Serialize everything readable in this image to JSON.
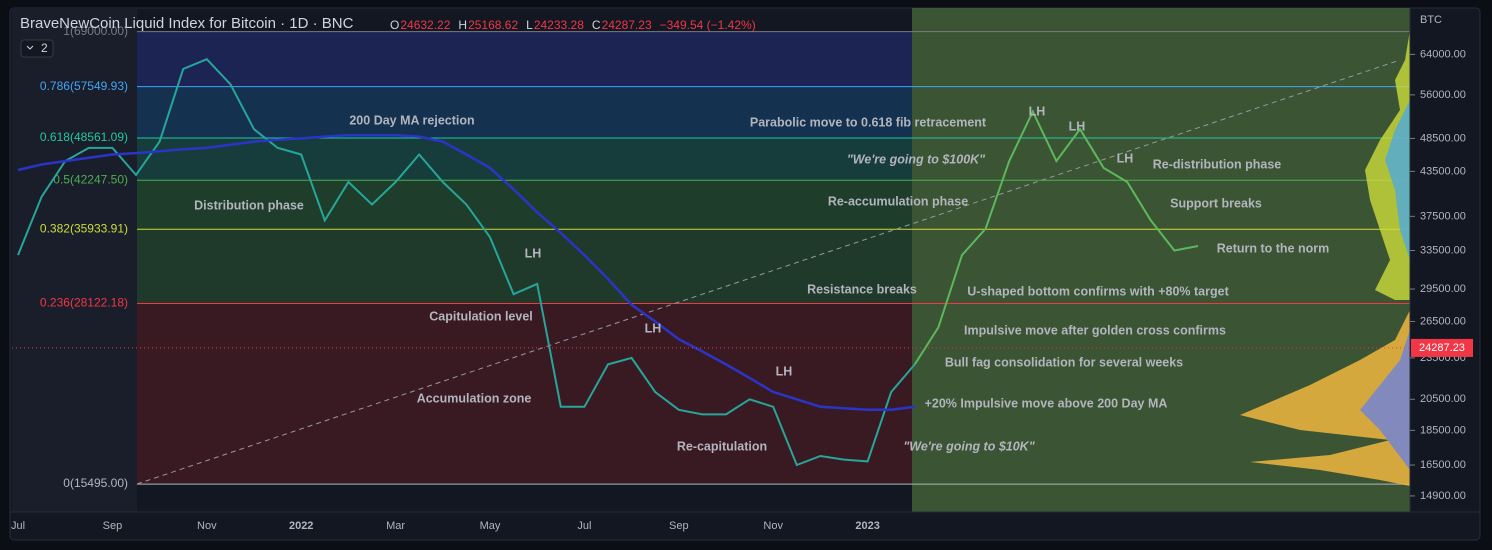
{
  "chart_data": {
    "type": "line",
    "title": "BraveNewCoin Liquid Index for Bitcoin · 1D · BNC",
    "ohlc": [
      {
        "key": "O",
        "value": 24632.22
      },
      {
        "key": "H",
        "value": 25168.62
      },
      {
        "key": "L",
        "value": 24233.28
      },
      {
        "key": "C",
        "value": 24287.23
      }
    ],
    "change": "−349.54 (−1.42%)",
    "indicator_count": "2",
    "currency": "BTC",
    "last_price": 24287.23,
    "log_scale": true,
    "ylim": [
      14130,
      74600
    ],
    "yticks": [
      {
        "value": 14900,
        "label": "14900.00"
      },
      {
        "value": 16500,
        "label": "16500.00"
      },
      {
        "value": 18500,
        "label": "18500.00"
      },
      {
        "value": 20500,
        "label": "20500.00"
      },
      {
        "value": 23500,
        "label": "23500.00"
      },
      {
        "value": 26500,
        "label": "26500.00"
      },
      {
        "value": 29500,
        "label": "29500.00"
      },
      {
        "value": 33500,
        "label": "33500.00"
      },
      {
        "value": 37500,
        "label": "37500.00"
      },
      {
        "value": 43500,
        "label": "43500.00"
      },
      {
        "value": 48500,
        "label": "48500.00"
      },
      {
        "value": 56000,
        "label": "56000.00"
      },
      {
        "value": 64000,
        "label": "64000.00"
      }
    ],
    "fib_levels": [
      {
        "value": 15495.0,
        "label": "0(15495.00)",
        "color": "#b2b5be"
      },
      {
        "value": 28122.18,
        "label": "0.236(28122.18)",
        "color": "#f23645"
      },
      {
        "value": 35933.91,
        "label": "0.382(35933.91)",
        "color": "#cddc39"
      },
      {
        "value": 42247.5,
        "label": "0.5(42247.50)",
        "color": "#4caf50"
      },
      {
        "value": 48561.09,
        "label": "0.618(48561.09)",
        "color": "#26c6a0"
      },
      {
        "value": 57549.93,
        "label": "0.786(57549.93)",
        "color": "#42a5f5"
      },
      {
        "value": 69000.0,
        "label": "1(69000.00)",
        "color": "#787b86"
      }
    ],
    "categories": [
      "Jul",
      null,
      null,
      null,
      "Sep",
      null,
      null,
      null,
      "Nov",
      null,
      null,
      null,
      "2022",
      null,
      null,
      null,
      "Mar",
      null,
      null,
      null,
      "May",
      null,
      null,
      null,
      "Jul",
      null,
      null,
      null,
      "Sep",
      null,
      null,
      null,
      "Nov",
      null,
      null,
      null,
      "2023",
      null,
      null,
      null,
      null,
      null,
      null,
      null,
      null,
      null,
      null,
      null,
      null,
      null,
      null
    ],
    "series": [
      {
        "color": "#26a69a",
        "values": [
          33000,
          40000,
          45000,
          47000,
          47000,
          43000,
          48000,
          61000,
          63000,
          58000,
          50000,
          47000,
          46000,
          37000,
          42000,
          39000,
          42000,
          46000,
          42000,
          39000,
          35000,
          29000,
          30000,
          20000,
          20000,
          23000,
          23500,
          21000,
          19800,
          19500,
          19500,
          20500,
          20000,
          16500,
          17000,
          16800,
          16700,
          21000,
          23000,
          null,
          null,
          null,
          null,
          null,
          null,
          null,
          null,
          null,
          null,
          null,
          null
        ]
      },
      {
        "color": "#2a35c8",
        "values": [
          43700,
          44500,
          45000,
          45500,
          46000,
          46200,
          46500,
          46800,
          47000,
          47500,
          48000,
          48300,
          48500,
          48800,
          49000,
          49000,
          49000,
          48800,
          48000,
          46000,
          44000,
          41000,
          38000,
          35500,
          33000,
          30500,
          28000,
          26500,
          25000,
          24000,
          23000,
          22000,
          21000,
          20500,
          20000,
          19900,
          19800,
          19800,
          20000,
          null,
          null,
          null,
          null,
          null,
          null,
          null,
          null,
          null,
          null,
          null,
          null
        ]
      },
      {
        "color": "#5cb85c",
        "values": [
          null,
          null,
          null,
          null,
          null,
          null,
          null,
          null,
          null,
          null,
          null,
          null,
          null,
          null,
          null,
          null,
          null,
          null,
          null,
          null,
          null,
          null,
          null,
          null,
          null,
          null,
          null,
          null,
          null,
          null,
          null,
          null,
          null,
          null,
          null,
          null,
          null,
          null,
          23000,
          26000,
          33000,
          36000,
          45000,
          53000,
          45000,
          50000,
          44000,
          42000,
          37000,
          33500,
          34000
        ]
      }
    ],
    "annotations": [
      {
        "text": "200 Day MA rejection"
      },
      {
        "text": "Distribution phase"
      },
      {
        "text": "LH"
      },
      {
        "text": "Capitulation level"
      },
      {
        "text": "Accumulation zone"
      },
      {
        "text": "LH"
      },
      {
        "text": "LH"
      },
      {
        "text": "Re-capitulation"
      },
      {
        "text": "Parabolic move to 0.618 fib retracement"
      },
      {
        "text": "\"We're going to $100K\""
      },
      {
        "text": "Re-accumulation phase"
      },
      {
        "text": "Resistance breaks"
      },
      {
        "text": "U-shaped bottom confirms with +80% target"
      },
      {
        "text": "Impulsive move after golden cross confirms"
      },
      {
        "text": "Bull fag consolidation for several weeks"
      },
      {
        "text": "+20% Impulsive move above 200 Day MA"
      },
      {
        "text": "\"We're going to $10K\""
      },
      {
        "text": "LH"
      },
      {
        "text": "LH"
      },
      {
        "text": "LH"
      },
      {
        "text": "Re-distribution phase"
      },
      {
        "text": "Support breaks"
      },
      {
        "text": "Return to the norm"
      }
    ]
  }
}
